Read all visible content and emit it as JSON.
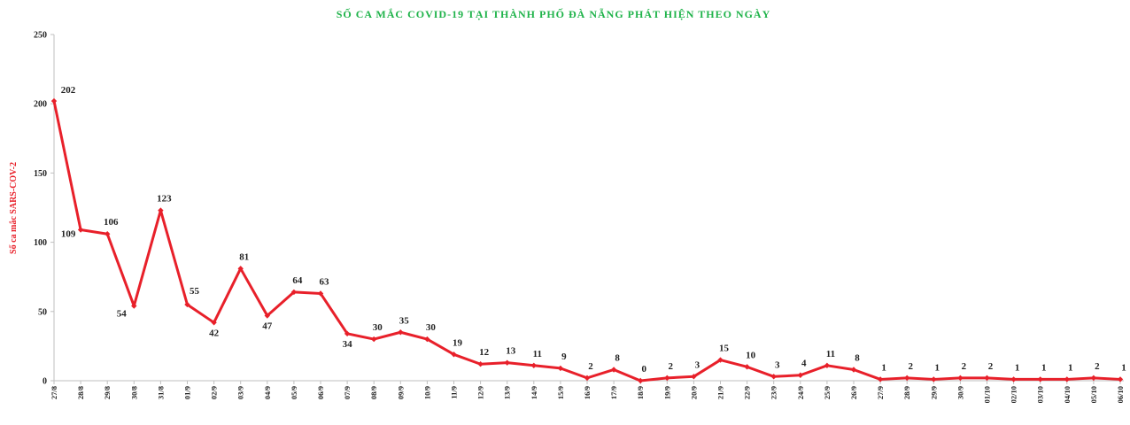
{
  "chart_data": {
    "type": "line",
    "title": "SỐ CA MẮC COVID-19 TẠI THÀNH PHỐ ĐÀ NẴNG PHÁT HIỆN THEO NGÀY",
    "xlabel": "",
    "ylabel": "Số ca mắc SARS-COV-2",
    "ylim": [
      0,
      250
    ],
    "yticks": [
      0,
      50,
      100,
      150,
      200,
      250
    ],
    "grid": false,
    "legend": "none",
    "series_color": "#e8202a",
    "title_color": "#1fb34a",
    "categories": [
      "27/8",
      "28/8",
      "29/8",
      "30/8",
      "31/8",
      "01/9",
      "02/9",
      "03/9",
      "04/9",
      "05/9",
      "06/9",
      "07/9",
      "08/9",
      "09/9",
      "10/9",
      "11/9",
      "12/9",
      "13/9",
      "14/9",
      "15/9",
      "16/9",
      "17/9",
      "18/9",
      "19/9",
      "20/9",
      "21/9",
      "22/9",
      "23/9",
      "24/9",
      "25/9",
      "26/9",
      "27/9",
      "28/9",
      "29/9",
      "30/9",
      "01/10",
      "02/10",
      "03/10",
      "04/10",
      "05/10",
      "06/10"
    ],
    "values": [
      202,
      109,
      106,
      54,
      123,
      55,
      42,
      81,
      47,
      64,
      63,
      34,
      30,
      35,
      30,
      19,
      12,
      13,
      11,
      9,
      2,
      8,
      0,
      2,
      3,
      15,
      10,
      3,
      4,
      11,
      8,
      1,
      2,
      1,
      2,
      2,
      1,
      1,
      1,
      2,
      1
    ]
  }
}
